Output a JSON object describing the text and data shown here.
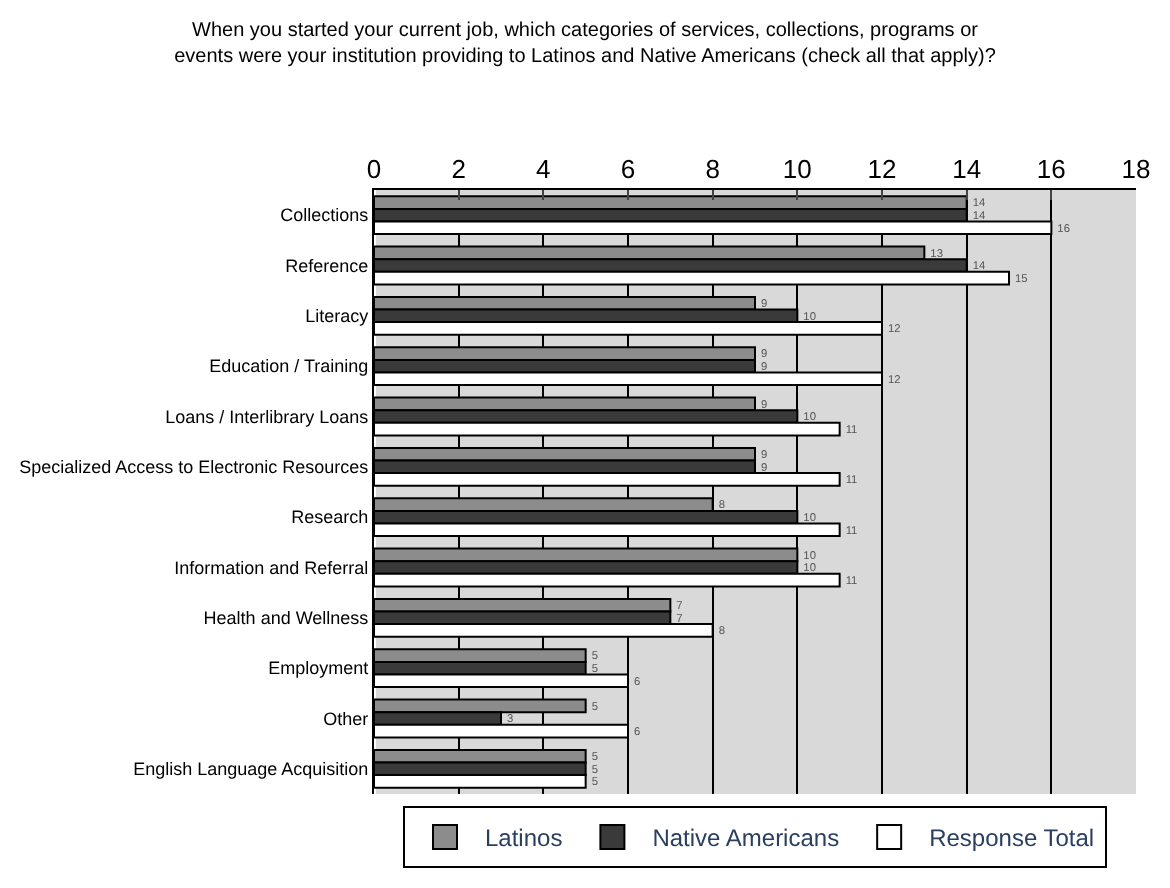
{
  "chart_data": {
    "type": "bar",
    "orientation": "horizontal",
    "title": "When you started your current job, which categories of services, collections, programs or\nevents were your institution providing to Latinos and Native Americans (check all that apply)?",
    "categories": [
      "Collections",
      "Reference",
      "Literacy",
      "Education / Training",
      "Loans / Interlibrary Loans",
      "Specialized Access to Electronic Resources",
      "Research",
      "Information and Referral",
      "Health and Wellness",
      "Employment",
      "Other",
      "English Language Acquisition"
    ],
    "series": [
      {
        "name": "Latinos",
        "color": "#8c8c8c",
        "values": [
          14,
          13,
          9,
          9,
          9,
          9,
          8,
          10,
          7,
          5,
          5,
          5
        ]
      },
      {
        "name": "Native Americans",
        "color": "#3a3a3a",
        "values": [
          14,
          14,
          10,
          9,
          10,
          9,
          10,
          10,
          7,
          5,
          3,
          5
        ]
      },
      {
        "name": "Response Total",
        "color": "#ffffff",
        "values": [
          16,
          15,
          12,
          12,
          11,
          11,
          11,
          11,
          8,
          6,
          6,
          5
        ]
      }
    ],
    "xlim": [
      0,
      18
    ],
    "xticks": [
      0,
      2,
      4,
      6,
      8,
      10,
      12,
      14,
      16,
      18
    ],
    "grid": "x",
    "legend": "bottom",
    "data_labels": true
  }
}
